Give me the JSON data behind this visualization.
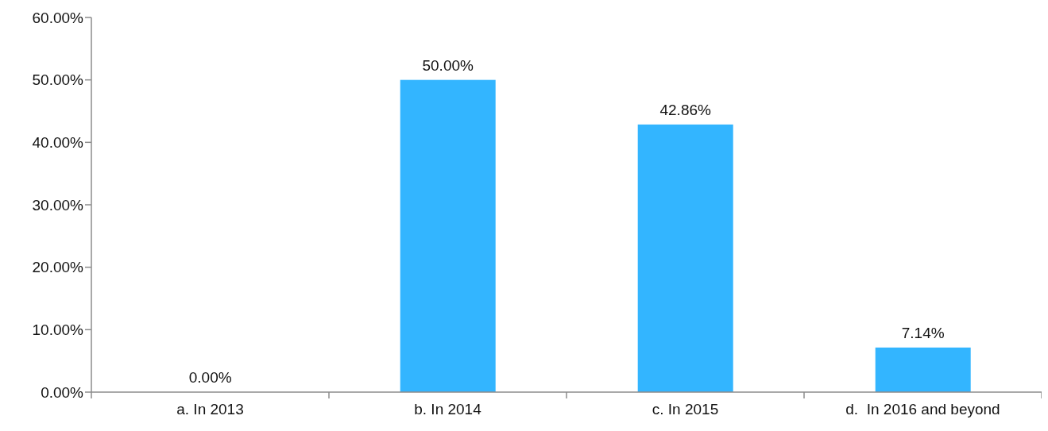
{
  "chart_data": {
    "type": "bar",
    "categories": [
      "a. In 2013",
      "b. In 2014",
      "c. In 2015",
      "d.  In 2016 and beyond"
    ],
    "values": [
      0,
      50,
      42.86,
      7.14
    ],
    "value_labels": [
      "0.00%",
      "50.00%",
      "42.86%",
      "7.14%"
    ],
    "color": "#33b5ff",
    "ylim": [
      0,
      60
    ],
    "yticks": [
      {
        "value": 0,
        "label": "0.00%"
      },
      {
        "value": 10,
        "label": "10.00%"
      },
      {
        "value": 20,
        "label": "20.00%"
      },
      {
        "value": 30,
        "label": "30.00%"
      },
      {
        "value": 40,
        "label": "40.00%"
      },
      {
        "value": 50,
        "label": "50.00%"
      },
      {
        "value": 60,
        "label": "60.00%"
      }
    ]
  }
}
